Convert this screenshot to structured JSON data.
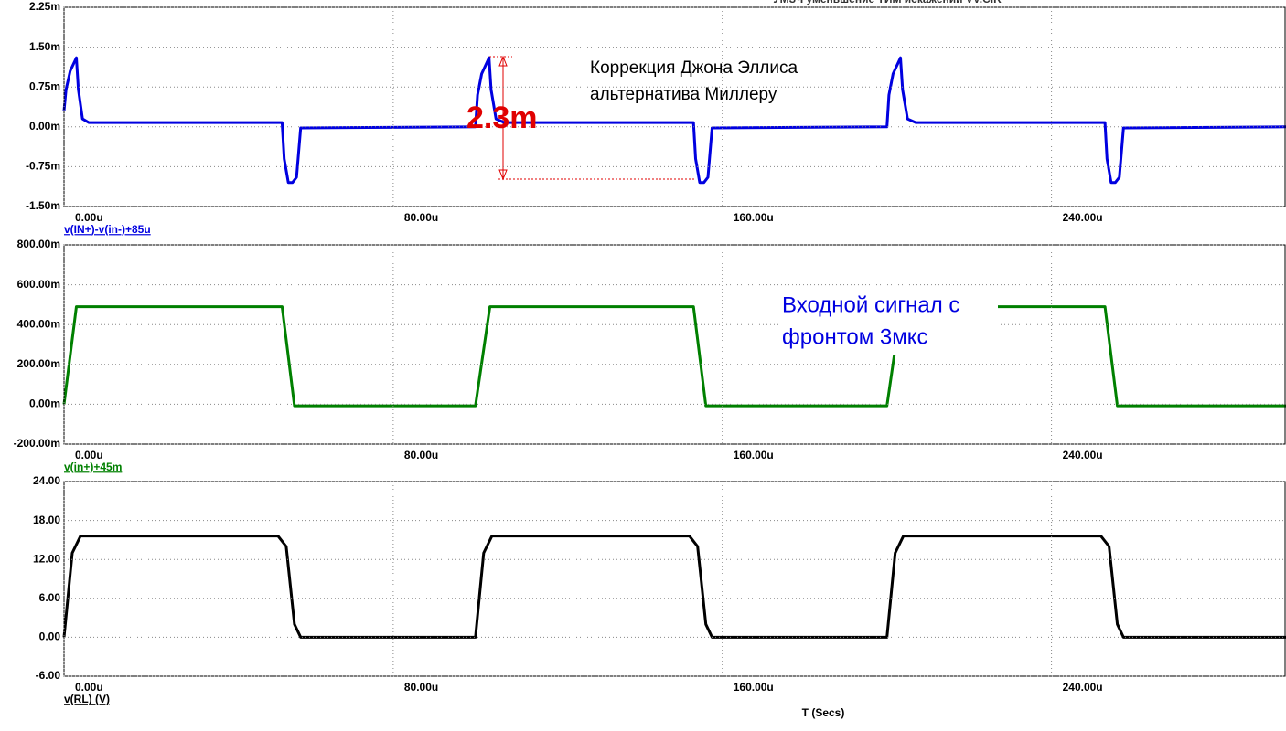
{
  "chart_data": [
    {
      "type": "line",
      "title": "УМЗЧ уменьшение ТИМ искажений VV.CIR",
      "xlim": [
        0,
        297
      ],
      "xticks": [
        {
          "value": 0,
          "label": "0.00u"
        },
        {
          "value": 80,
          "label": "80.00u"
        },
        {
          "value": 160,
          "label": "160.00u"
        },
        {
          "value": 240,
          "label": "240.00u"
        }
      ],
      "ylim": [
        -1.5,
        2.25
      ],
      "yticks": [
        {
          "value": -1.5,
          "label": "-1.50m"
        },
        {
          "value": -0.75,
          "label": "-0.75m"
        },
        {
          "value": 0,
          "label": "0.00m"
        },
        {
          "value": 0.75,
          "label": "0.75m"
        },
        {
          "value": 1.5,
          "label": "1.50m"
        },
        {
          "value": 2.25,
          "label": "2.25m"
        }
      ],
      "grid": true,
      "x": [
        0,
        0.5,
        1.5,
        3,
        3.5,
        4.5,
        6,
        53,
        53.5,
        54.5,
        55.5,
        56.5,
        57.5,
        100,
        100.5,
        101.5,
        103.3,
        103.8,
        105,
        107,
        153,
        153.5,
        154.5,
        155.5,
        156.5,
        157.5,
        200,
        200.5,
        201.5,
        203.3,
        203.8,
        205,
        207,
        253,
        253.5,
        254.5,
        255.5,
        256.5,
        257.5,
        297
      ],
      "series": [
        {
          "name": "v(IN+)-v(in-)+85u",
          "color": "#0000e0",
          "values": [
            0.3,
            0.7,
            1.05,
            1.3,
            0.7,
            0.15,
            0.08,
            0.08,
            -0.6,
            -1.05,
            -1.05,
            -0.95,
            -0.02,
            0,
            0.6,
            1.0,
            1.3,
            0.7,
            0.15,
            0.08,
            0.08,
            -0.6,
            -1.05,
            -1.05,
            -0.95,
            -0.02,
            0,
            0.6,
            1.0,
            1.3,
            0.7,
            0.15,
            0.08,
            0.08,
            -0.6,
            -1.05,
            -1.05,
            -0.95,
            -0.02,
            0
          ]
        }
      ],
      "annotations": [
        "Коррекция Джона Эллиса",
        "альтернатива Миллеру",
        "2.3m"
      ]
    },
    {
      "type": "line",
      "xlim": [
        0,
        297
      ],
      "xticks": [
        {
          "value": 0,
          "label": "0.00u"
        },
        {
          "value": 80,
          "label": "80.00u"
        },
        {
          "value": 160,
          "label": "160.00u"
        },
        {
          "value": 240,
          "label": "240.00u"
        }
      ],
      "ylim": [
        -200,
        800
      ],
      "yticks": [
        {
          "value": -200,
          "label": "-200.00m"
        },
        {
          "value": 0,
          "label": "0.00m"
        },
        {
          "value": 200,
          "label": "200.00m"
        },
        {
          "value": 400,
          "label": "400.00m"
        },
        {
          "value": 600,
          "label": "600.00m"
        },
        {
          "value": 800,
          "label": "800.00m"
        }
      ],
      "grid": true,
      "x": [
        0,
        3,
        53,
        56,
        100,
        103.5,
        153,
        156,
        200,
        203.5,
        253,
        256,
        297
      ],
      "series": [
        {
          "name": "v(in+)+45m",
          "color": "#008000",
          "values": [
            0,
            490,
            490,
            -8,
            -8,
            490,
            490,
            -8,
            -8,
            490,
            490,
            -8,
            -8
          ]
        }
      ],
      "annotations": [
        "Входной сигнал с",
        "фронтом 3мкс"
      ]
    },
    {
      "type": "line",
      "xlabel": "T (Secs)",
      "xlim": [
        0,
        297
      ],
      "xticks": [
        {
          "value": 0,
          "label": "0.00u"
        },
        {
          "value": 80,
          "label": "80.00u"
        },
        {
          "value": 160,
          "label": "160.00u"
        },
        {
          "value": 240,
          "label": "240.00u"
        }
      ],
      "ylim": [
        -6,
        24
      ],
      "yticks": [
        {
          "value": -6,
          "label": "-6.00"
        },
        {
          "value": 0,
          "label": "0.00"
        },
        {
          "value": 6,
          "label": "6.00"
        },
        {
          "value": 12,
          "label": "12.00"
        },
        {
          "value": 18,
          "label": "18.00"
        },
        {
          "value": 24,
          "label": "24.00"
        }
      ],
      "grid": true,
      "x": [
        0,
        2,
        4,
        52,
        54,
        56,
        57.5,
        100,
        102,
        104,
        152,
        154,
        156,
        157.5,
        200,
        202,
        204,
        252,
        254,
        256,
        257.5,
        297
      ],
      "series": [
        {
          "name": "v(RL) (V)",
          "color": "#000000",
          "values": [
            0,
            13,
            15.6,
            15.6,
            14,
            2,
            0,
            0,
            13,
            15.6,
            15.6,
            14,
            2,
            0,
            0,
            13,
            15.6,
            15.6,
            14,
            2,
            0,
            0
          ]
        }
      ]
    }
  ]
}
